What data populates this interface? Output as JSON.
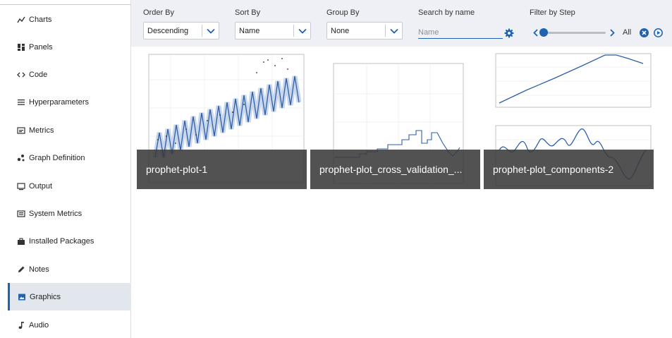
{
  "sidebar": {
    "items": [
      {
        "label": "Charts",
        "icon": "line-chart-icon"
      },
      {
        "label": "Panels",
        "icon": "panels-icon"
      },
      {
        "label": "Code",
        "icon": "code-icon"
      },
      {
        "label": "Hyperparameters",
        "icon": "list-icon"
      },
      {
        "label": "Metrics",
        "icon": "metrics-icon"
      },
      {
        "label": "Graph Definition",
        "icon": "graph-icon"
      },
      {
        "label": "Output",
        "icon": "monitor-icon"
      },
      {
        "label": "System Metrics",
        "icon": "system-icon"
      },
      {
        "label": "Installed Packages",
        "icon": "briefcase-icon"
      },
      {
        "label": "Notes",
        "icon": "pencil-icon"
      },
      {
        "label": "Graphics",
        "icon": "image-icon",
        "active": true
      },
      {
        "label": "Audio",
        "icon": "music-note-icon"
      }
    ]
  },
  "toolbar": {
    "order_by": {
      "label": "Order By",
      "value": "Descending"
    },
    "sort_by": {
      "label": "Sort By",
      "value": "Name"
    },
    "group_by": {
      "label": "Group By",
      "value": "None"
    },
    "search": {
      "label": "Search by name",
      "placeholder": "Name"
    },
    "filter": {
      "label": "Filter by Step",
      "all_label": "All",
      "position": 0
    }
  },
  "cards": [
    {
      "caption": "prophet-plot-1"
    },
    {
      "caption": "prophet-plot_cross_validation_..."
    },
    {
      "caption": "prophet-plot_components-2"
    }
  ],
  "colors": {
    "accent": "#1e62b0",
    "toolbar_bg": "#eef0f5",
    "active_bg": "#e2e7ee",
    "caption_bg": "#3a3a3a"
  }
}
